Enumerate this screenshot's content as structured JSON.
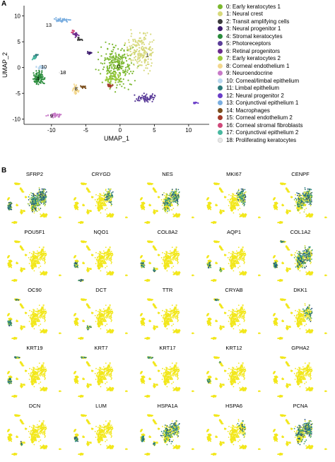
{
  "panels": {
    "a_label": "A",
    "b_label": "B"
  },
  "chart_data": {
    "type": "scatter",
    "xlabel": "UMAP_1",
    "ylabel": "UMAP_2",
    "xticks": [
      "-10",
      "-5",
      "0",
      "5",
      "10"
    ],
    "yticks": [
      "10",
      "5",
      "0",
      "-5",
      "-10"
    ],
    "xlim": [
      -14,
      13
    ],
    "ylim": [
      -11,
      12
    ],
    "clusters": [
      {
        "id": "0",
        "name": "0: Early keratocytes 1",
        "color": "#7cb82f",
        "cx": -0.5,
        "cy": 0.5,
        "rx": 3.5,
        "ry": 5.5,
        "n": 260,
        "label_pos": [
          -0.2,
          0.5
        ]
      },
      {
        "id": "1",
        "name": "1: Neural crest",
        "color": "#d7d97b",
        "cx": 3.0,
        "cy": 3.0,
        "rx": 2.8,
        "ry": 5.0,
        "n": 180,
        "label_pos": [
          3.5,
          2.8
        ]
      },
      {
        "id": "2",
        "name": "2: Transit amplifying cells",
        "color": "#3b3b3b",
        "cx": -6.0,
        "cy": 5.5,
        "rx": 0.6,
        "ry": 0.5,
        "n": 14,
        "label_pos": [
          -6.0,
          5.5
        ]
      },
      {
        "id": "3",
        "name": "3: Neural progenitor 1",
        "color": "#3d1c6e",
        "cx": -4.5,
        "cy": 2.8,
        "rx": 0.5,
        "ry": 0.4,
        "n": 14,
        "label_pos": [
          -4.5,
          2.8
        ]
      },
      {
        "id": "4",
        "name": "4: Stromal keratocytes",
        "color": "#2a8c3c",
        "cx": -11.8,
        "cy": -2.0,
        "rx": 1.3,
        "ry": 2.0,
        "n": 90,
        "label_pos": [
          -12.1,
          -2.1
        ]
      },
      {
        "id": "5",
        "name": "5: Photoreceptors",
        "color": "#5b3d99",
        "cx": 3.8,
        "cy": -6.0,
        "rx": 2.0,
        "ry": 1.2,
        "n": 60,
        "label_pos": [
          3.5,
          -6.0
        ]
      },
      {
        "id": "6",
        "name": "6: Retinal progenitors",
        "color": "#6b2a8c",
        "cx": -6.5,
        "cy": 6.5,
        "rx": 0.6,
        "ry": 0.8,
        "n": 18,
        "label_pos": [
          -6.5,
          6.5
        ]
      },
      {
        "id": "7",
        "name": "7: Early keratocytes 2",
        "color": "#9ccc3c",
        "cx": -1.0,
        "cy": -2.0,
        "rx": 1.5,
        "ry": 1.5,
        "n": 50,
        "label_pos": [
          -1.0,
          -2.0
        ]
      },
      {
        "id": "8",
        "name": "8: Corneal endothelium 1",
        "color": "#f3d78d",
        "cx": -6.5,
        "cy": -4.2,
        "rx": 0.6,
        "ry": 1.5,
        "n": 30,
        "label_pos": [
          -6.6,
          -3.9
        ]
      },
      {
        "id": "9",
        "name": "9: Neuroendocrine",
        "color": "#c87ac8",
        "cx": -9.5,
        "cy": -9.2,
        "rx": 1.5,
        "ry": 0.6,
        "n": 40,
        "label_pos": [
          -10.5,
          -9.3
        ]
      },
      {
        "id": "10",
        "name": "10: Corneal/limbal epithelium",
        "color": "#b8d6ee",
        "cx": -11.5,
        "cy": 0.0,
        "rx": 1.0,
        "ry": 0.6,
        "n": 30,
        "label_pos": [
          -11.2,
          0.0
        ]
      },
      {
        "id": "11",
        "name": "11: Limbal epithelium",
        "color": "#2a7a7a",
        "cx": -12.3,
        "cy": 2.3,
        "rx": 0.4,
        "ry": 0.5,
        "n": 12,
        "label_pos": [
          -12.3,
          2.3
        ]
      },
      {
        "id": "12",
        "name": "12: Neural progenitor 2",
        "color": "#6a3dc8",
        "cx": 11.0,
        "cy": -6.8,
        "rx": 0.5,
        "ry": 0.3,
        "n": 10,
        "label_pos": [
          11.0,
          -6.8
        ]
      },
      {
        "id": "13",
        "name": "13: Conjunctival epithelium 1",
        "color": "#7aaee0",
        "cx": -8.5,
        "cy": 9.2,
        "rx": 1.8,
        "ry": 0.6,
        "n": 40,
        "label_pos": [
          -10.6,
          8.4
        ]
      },
      {
        "id": "14",
        "name": "14: Macrophages",
        "color": "#7a4d1c",
        "cx": -5.3,
        "cy": -3.8,
        "rx": 0.5,
        "ry": 0.4,
        "n": 12,
        "label_pos": [
          -5.3,
          -3.8
        ]
      },
      {
        "id": "15",
        "name": "15: Corneal endothelium 2",
        "color": "#a23a2a",
        "cx": -1.5,
        "cy": -3.5,
        "rx": 0.7,
        "ry": 0.5,
        "n": 16,
        "label_pos": [
          -1.5,
          -3.5
        ]
      },
      {
        "id": "16",
        "name": "16: Corneal stromal fibroblasts",
        "color": "#d0487a",
        "cx": -6.8,
        "cy": 7.0,
        "rx": 0.4,
        "ry": 0.4,
        "n": 10,
        "label_pos": [
          -6.8,
          7.0
        ]
      },
      {
        "id": "17",
        "name": "17: Conjunctival epithelium 2",
        "color": "#48b8a0",
        "cx": -12.5,
        "cy": 1.8,
        "rx": 0.5,
        "ry": 0.5,
        "n": 12,
        "label_pos": [
          -12.5,
          1.8
        ]
      },
      {
        "id": "18",
        "name": "18: Proliferating keratocytes",
        "color": "#e8e8e8",
        "cx": -8.5,
        "cy": -1.0,
        "rx": 0.5,
        "ry": 0.5,
        "n": 10,
        "label_pos": [
          -8.5,
          -0.8
        ]
      }
    ],
    "cluster_labels": [
      {
        "text": "0",
        "x": -0.2,
        "y": 0.3
      },
      {
        "text": "1",
        "x": 4.0,
        "y": 2.5
      },
      {
        "text": "4",
        "x": -12.0,
        "y": -2.0
      },
      {
        "text": "8",
        "x": -6.4,
        "y": -4.0
      },
      {
        "text": "9",
        "x": -10.0,
        "y": -9.3
      },
      {
        "text": "10",
        "x": -11.1,
        "y": 0.2
      },
      {
        "text": "13",
        "x": -10.4,
        "y": 8.3
      },
      {
        "text": "18",
        "x": -8.3,
        "y": -0.9
      }
    ]
  },
  "feature_plots": {
    "genes": [
      "SFRP2",
      "CRYGD",
      "NES",
      "MKI67",
      "CENPF",
      "POU5F1",
      "NQO1",
      "COL8A2",
      "AQP1",
      "COL1A2",
      "OC90",
      "DCT",
      "TTR",
      "CRYAB",
      "DKK1",
      "KRT19",
      "KRT7",
      "KRT17",
      "KRT12",
      "GPHA2",
      "DCN",
      "LUM",
      "HSPA1A",
      "HSPA6",
      "PCNA"
    ],
    "expression": [
      {
        "gene": "SFRP2",
        "clusters": {
          "0": 0.6,
          "1": 0.9,
          "4": 0.7,
          "10": 0.8
        }
      },
      {
        "gene": "CRYGD",
        "clusters": {
          "1": 0.3
        }
      },
      {
        "gene": "NES",
        "clusters": {
          "1": 0.6,
          "0": 0.3
        }
      },
      {
        "gene": "MKI67",
        "clusters": {
          "1": 0.7
        }
      },
      {
        "gene": "CENPF",
        "clusters": {
          "1": 0.8,
          "0": 0.4
        }
      },
      {
        "gene": "POU5F1",
        "clusters": {}
      },
      {
        "gene": "NQO1",
        "clusters": {
          "4": 0.6,
          "9": 0.3
        }
      },
      {
        "gene": "COL8A2",
        "clusters": {
          "4": 0.4,
          "8": 0.5
        }
      },
      {
        "gene": "AQP1",
        "clusters": {
          "4": 0.5,
          "8": 0.4
        }
      },
      {
        "gene": "COL1A2",
        "clusters": {
          "0": 0.6,
          "1": 0.5,
          "4": 0.8,
          "13": 0.5
        }
      },
      {
        "gene": "OC90",
        "clusters": {
          "4": 0.6,
          "13": 0.3
        }
      },
      {
        "gene": "DCT",
        "clusters": {
          "8": 0.8,
          "14": 0.6
        }
      },
      {
        "gene": "TTR",
        "clusters": {}
      },
      {
        "gene": "CRYAB",
        "clusters": {
          "13": 0.3
        }
      },
      {
        "gene": "DKK1",
        "clusters": {
          "1": 0.3
        }
      },
      {
        "gene": "KRT19",
        "clusters": {
          "4": 0.6,
          "13": 0.7
        }
      },
      {
        "gene": "KRT7",
        "clusters": {
          "13": 0.5
        }
      },
      {
        "gene": "KRT17",
        "clusters": {
          "13": 0.6
        }
      },
      {
        "gene": "KRT12",
        "clusters": {
          "4": 0.3,
          "16": 0.8
        }
      },
      {
        "gene": "GPHA2",
        "clusters": {}
      },
      {
        "gene": "DCN",
        "clusters": {
          "8": 0.4
        }
      },
      {
        "gene": "LUM",
        "clusters": {
          "4": 0.4
        }
      },
      {
        "gene": "HSPA1A",
        "clusters": {
          "0": 0.4,
          "1": 0.5,
          "4": 0.6,
          "8": 0.4
        }
      },
      {
        "gene": "HSPA6",
        "clusters": {
          "1": 0.2
        }
      },
      {
        "gene": "PCNA",
        "clusters": {
          "1": 0.7,
          "0": 0.4
        }
      }
    ],
    "colors": {
      "low": "#f2e71b",
      "mid": "#2a9d8f",
      "high": "#1f3b73"
    }
  }
}
